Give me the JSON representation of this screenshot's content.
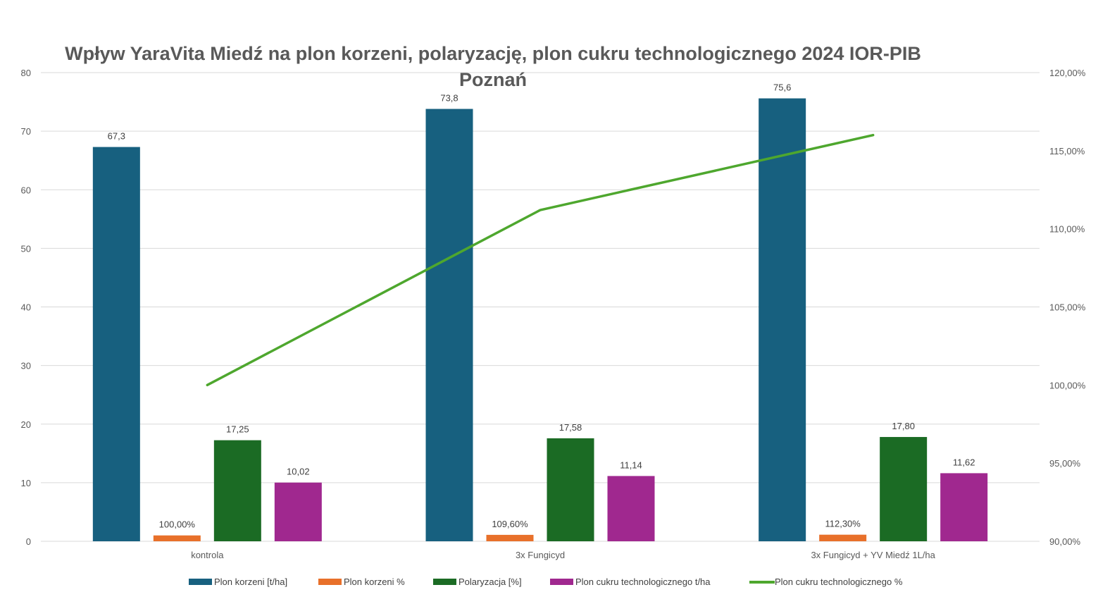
{
  "chart_data": {
    "type": "bar",
    "title": "Wpływ YaraVita Miedź na plon korzeni, polaryzację, plon cukru technologicznego 2024 IOR-PIB Poznań",
    "categories": [
      "kontrola",
      "3x Fungicyd",
      "3x Fungicyd + YV Miedź 1L/ha"
    ],
    "y_left": {
      "min": 0,
      "max": 80,
      "ticks": [
        "0",
        "10",
        "20",
        "30",
        "40",
        "50",
        "60",
        "70",
        "80"
      ]
    },
    "y_right": {
      "min": 90,
      "max": 120,
      "ticks": [
        "90,00%",
        "95,00%",
        "100,00%",
        "105,00%",
        "110,00%",
        "115,00%",
        "120,00%"
      ]
    },
    "gridlines": true,
    "legend_position": "bottom",
    "series": [
      {
        "name": "Plon korzeni [t/ha]",
        "kind": "bar",
        "axis": "left",
        "color": "#17607F",
        "values": [
          67.3,
          73.8,
          75.6
        ],
        "labels": [
          "67,3",
          "73,8",
          "75,6"
        ]
      },
      {
        "name": "Plon korzeni %",
        "kind": "bar",
        "axis": "left",
        "color": "#E8702A",
        "values": [
          1.0,
          1.096,
          1.123
        ],
        "labels": [
          "100,00%",
          "109,60%",
          "112,30%"
        ]
      },
      {
        "name": "Polaryzacja [%]",
        "kind": "bar",
        "axis": "left",
        "color": "#1B6B24",
        "values": [
          17.25,
          17.58,
          17.8
        ],
        "labels": [
          "17,25",
          "17,58",
          "17,80"
        ]
      },
      {
        "name": "Plon cukru technologicznego t/ha",
        "kind": "bar",
        "axis": "left",
        "color": "#A0288F",
        "values": [
          10.02,
          11.14,
          11.62
        ],
        "labels": [
          "10,02",
          "11,14",
          "11,62"
        ]
      },
      {
        "name": "Plon cukru technologicznego %",
        "kind": "line",
        "axis": "right",
        "color": "#4EA72E",
        "values": [
          100.0,
          111.2,
          116.0
        ]
      }
    ]
  }
}
